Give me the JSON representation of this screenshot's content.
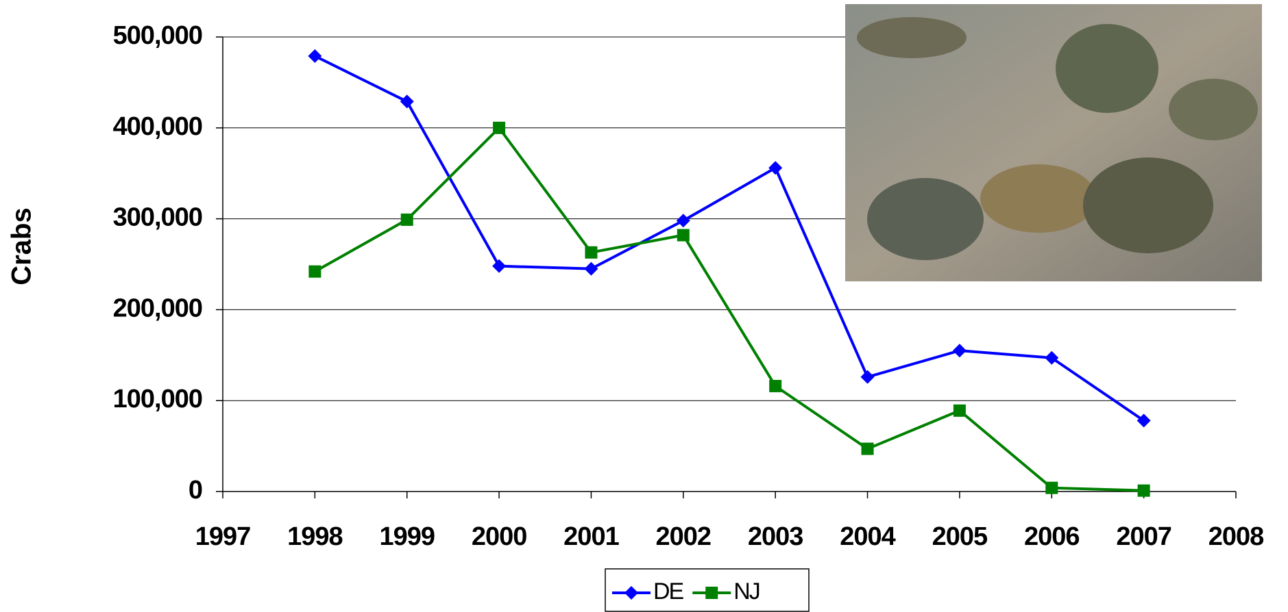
{
  "chart_data": {
    "type": "line",
    "y_label": "Crabs",
    "x": [
      1998,
      1999,
      2000,
      2001,
      2002,
      2003,
      2004,
      2005,
      2006,
      2007
    ],
    "series": [
      {
        "name": "DE",
        "color": "#0000ff",
        "marker": "diamond",
        "values": [
          479000,
          429000,
          248000,
          245000,
          298000,
          356000,
          126000,
          155000,
          147000,
          78000
        ]
      },
      {
        "name": "NJ",
        "color": "#008000",
        "marker": "square",
        "values": [
          242000,
          299000,
          400000,
          263000,
          282000,
          116000,
          47000,
          89000,
          4000,
          1000
        ]
      }
    ],
    "xlim": [
      1997,
      2008
    ],
    "xticks": [
      1997,
      1998,
      1999,
      2000,
      2001,
      2002,
      2003,
      2004,
      2005,
      2006,
      2007,
      2008
    ],
    "ylim": [
      0,
      500000
    ],
    "yticks": [
      0,
      {
        "value": 100000,
        "label": "100,000"
      },
      {
        "value": 200000,
        "label": "200,000"
      },
      {
        "value": 300000,
        "label": "300,000"
      },
      {
        "value": 400000,
        "label": "400,000"
      },
      {
        "value": 500000,
        "label": "500,000"
      }
    ],
    "grid": true,
    "legend": "bottom"
  }
}
